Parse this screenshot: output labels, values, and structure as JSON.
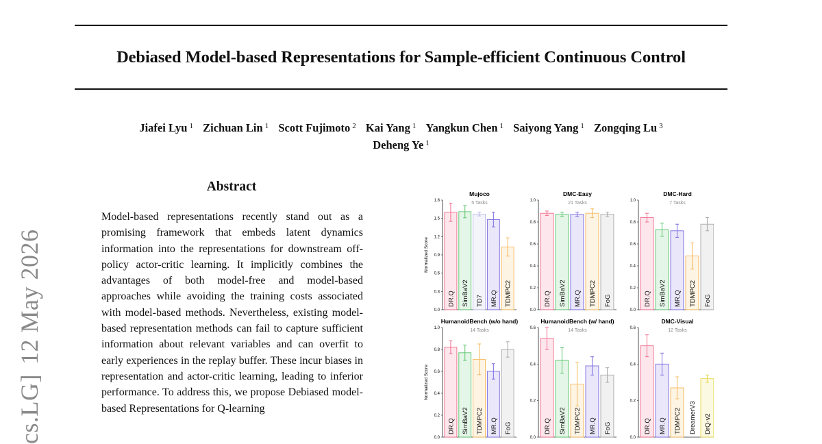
{
  "arxiv": {
    "category": "cs.LG]",
    "date": "12 May 2026"
  },
  "title": "Debiased Model-based Representations for Sample-efficient Continuous Control",
  "authors": [
    {
      "name": "Jiafei Lyu",
      "aff": "1"
    },
    {
      "name": "Zichuan Lin",
      "aff": "1"
    },
    {
      "name": "Scott Fujimoto",
      "aff": "2"
    },
    {
      "name": "Kai Yang",
      "aff": "1"
    },
    {
      "name": "Yangkun Chen",
      "aff": "1"
    },
    {
      "name": "Saiyong Yang",
      "aff": "1"
    },
    {
      "name": "Zongqing Lu",
      "aff": "3"
    },
    {
      "name": "Deheng Ye",
      "aff": "1"
    }
  ],
  "abstract": {
    "heading": "Abstract",
    "text": "Model-based representations recently stand out as a promising framework that embeds latent dynamics information into the representations for downstream off-policy actor-critic learning. It implicitly combines the advantages of both model-free and model-based approaches while avoiding the training costs associated with model-based methods. Nevertheless, existing model-based representation methods can fail to capture sufficient information about relevant variables and can overfit to early experiences in the replay buffer. These incur biases in representation and actor-critic learning, leading to inferior performance. To address this, we propose Debiased model-based Representations for Q-learning"
  },
  "colors": {
    "DR.Q": "#f06b8a",
    "SimBaV2": "#58c46a",
    "TD7": "#b8b8e8",
    "MR.Q": "#7a6ce0",
    "TDMPC2": "#f5b85a",
    "FoG": "#a8a8a8",
    "DreamerV3": "#8ec5ea",
    "DrQ-v2": "#e8d84a"
  },
  "chart_data": [
    {
      "type": "bar",
      "title": "Mujoco",
      "subtitle": "5 Tasks",
      "ylabel": "Normalized Score",
      "ylim": [
        0,
        1.8
      ],
      "yticks": [
        "0.0",
        "0.3",
        "0.6",
        "0.9",
        "1.2",
        "1.5",
        "1.8"
      ],
      "categories": [
        "DR.Q",
        "SimBaV2",
        "TD7",
        "MR.Q",
        "TDMPC2"
      ],
      "values": [
        1.6,
        1.61,
        1.57,
        1.48,
        1.03
      ],
      "errors": [
        0.15,
        0.1,
        0.03,
        0.12,
        0.15
      ]
    },
    {
      "type": "bar",
      "title": "DMC-Easy",
      "subtitle": "21 Tasks",
      "ylabel": "",
      "ylim": [
        0,
        1.0
      ],
      "yticks": [
        "0.0",
        "0.2",
        "0.4",
        "0.6",
        "0.8",
        "1.0"
      ],
      "categories": [
        "DR.Q",
        "SimBaV2",
        "MR.Q",
        "TDMPC2",
        "FoG"
      ],
      "values": [
        0.88,
        0.87,
        0.87,
        0.88,
        0.87
      ],
      "errors": [
        0.02,
        0.02,
        0.02,
        0.04,
        0.02
      ]
    },
    {
      "type": "bar",
      "title": "DMC-Hard",
      "subtitle": "7 Tasks",
      "ylabel": "",
      "ylim": [
        0,
        1.0
      ],
      "yticks": [
        "0.0",
        "0.2",
        "0.4",
        "0.6",
        "0.8",
        "1.0"
      ],
      "categories": [
        "DR.Q",
        "SimBaV2",
        "MR.Q",
        "TDMPC2",
        "FoG"
      ],
      "values": [
        0.84,
        0.73,
        0.72,
        0.49,
        0.78
      ],
      "errors": [
        0.04,
        0.06,
        0.06,
        0.12,
        0.06
      ]
    },
    {
      "type": "bar",
      "title": "HumanoidBench (w/o hand)",
      "subtitle": "14 Tasks",
      "ylabel": "Normalized Score",
      "ylim": [
        0,
        1.0
      ],
      "yticks": [
        "0.0",
        "0.2",
        "0.4",
        "0.6",
        "0.8",
        "1.0"
      ],
      "categories": [
        "DR.Q",
        "SimBaV2",
        "TDMPC2",
        "MR.Q",
        "FoG"
      ],
      "values": [
        0.82,
        0.77,
        0.71,
        0.6,
        0.8
      ],
      "errors": [
        0.06,
        0.07,
        0.14,
        0.07,
        0.07
      ]
    },
    {
      "type": "bar",
      "title": "HumanoidBench (w/ hand)",
      "subtitle": "14 Tasks",
      "ylabel": "",
      "ylim": [
        0,
        0.6
      ],
      "yticks": [
        "0.0",
        "0.2",
        "0.4",
        "0.6"
      ],
      "categories": [
        "DR.Q",
        "SimBaV2",
        "TDMPC2",
        "MR.Q",
        "FoG"
      ],
      "values": [
        0.54,
        0.42,
        0.29,
        0.39,
        0.34
      ],
      "errors": [
        0.06,
        0.07,
        0.12,
        0.05,
        0.04
      ]
    },
    {
      "type": "bar",
      "title": "DMC-Visual",
      "subtitle": "12 Tasks",
      "ylabel": "",
      "ylim": [
        0,
        0.6
      ],
      "yticks": [
        "0.0",
        "0.2",
        "0.4",
        "0.6"
      ],
      "categories": [
        "DR.Q",
        "MR.Q",
        "TDMPC2",
        "DreamerV3",
        "DrQ-v2"
      ],
      "values": [
        0.5,
        0.4,
        0.27,
        0.0,
        0.32
      ],
      "errors": [
        0.06,
        0.06,
        0.06,
        0.0,
        0.02
      ]
    }
  ]
}
